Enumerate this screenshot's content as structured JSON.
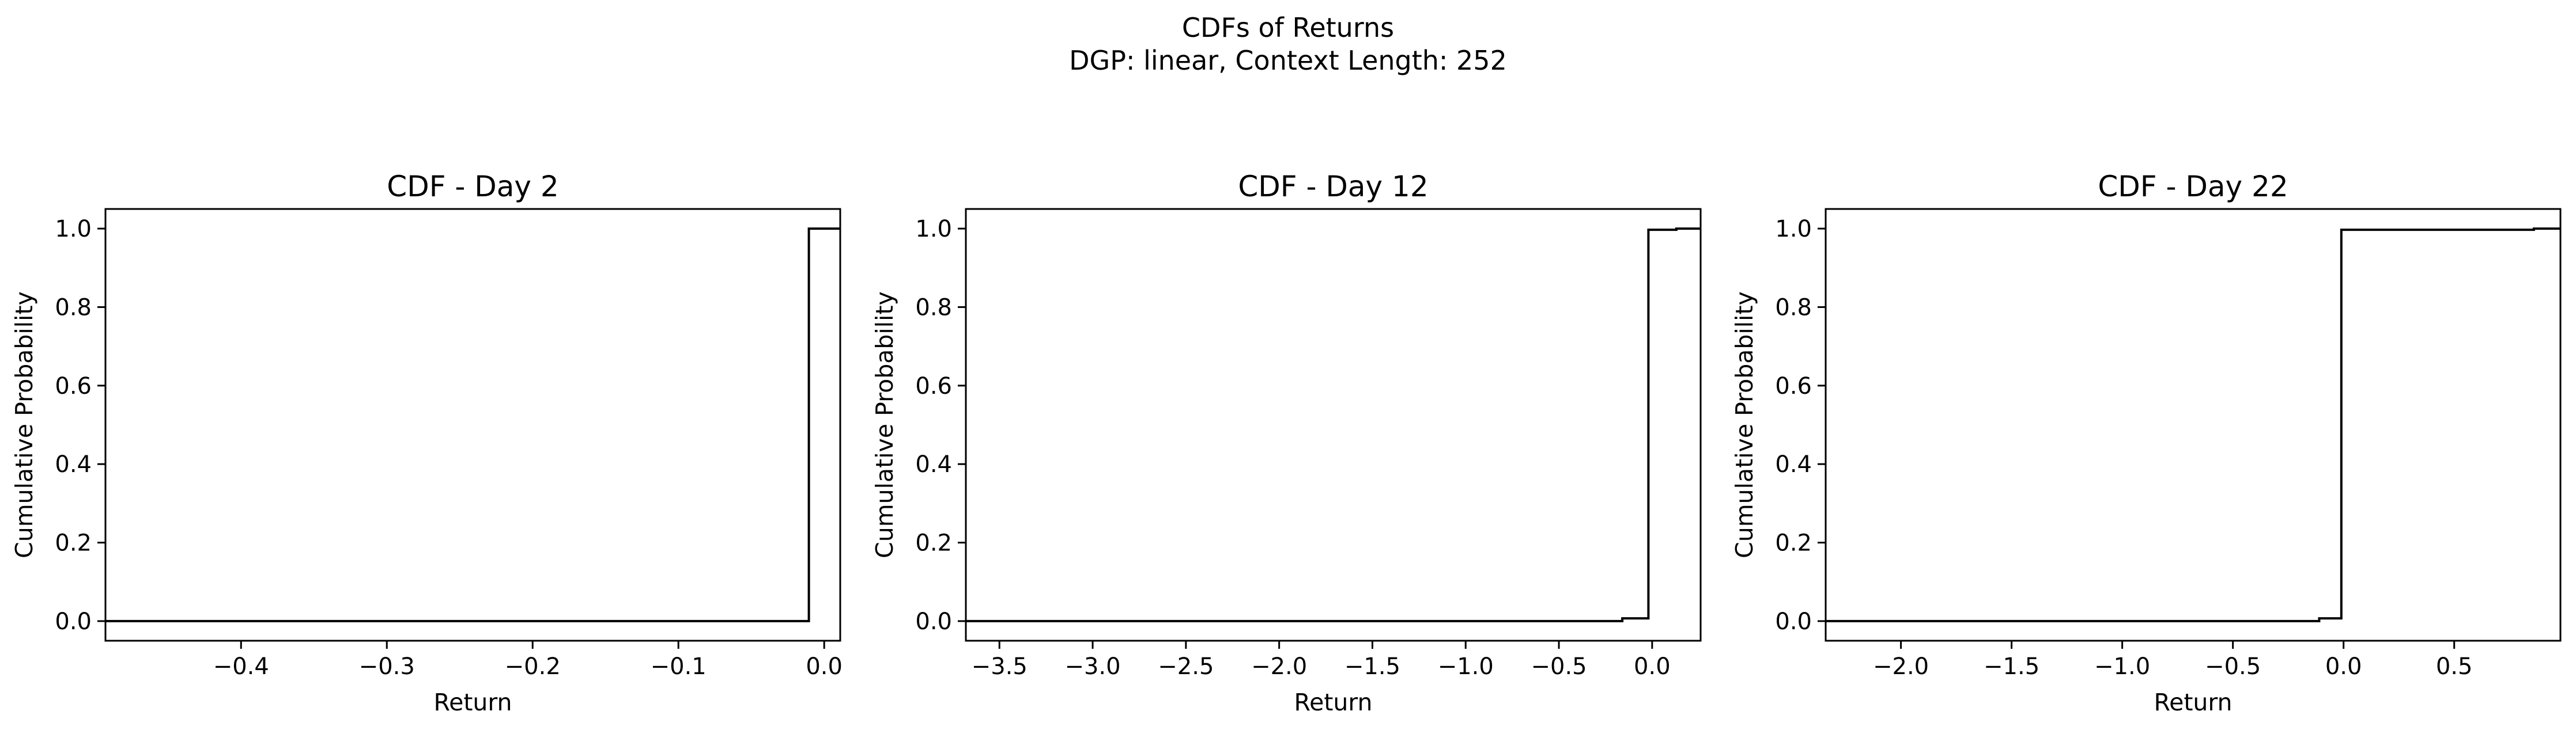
{
  "figure": {
    "title_line1": "CDFs of Returns",
    "title_line2": "DGP: linear, Context Length: 252"
  },
  "chart_data": [
    {
      "type": "line",
      "title": "CDF - Day 2",
      "xlabel": "Return",
      "ylabel": "Cumulative Probability",
      "xlim": [
        -0.493,
        0.011
      ],
      "ylim": [
        -0.05,
        1.05
      ],
      "xticks": [
        -0.4,
        -0.3,
        -0.2,
        -0.1,
        0.0
      ],
      "xticklabels": [
        "−0.4",
        "−0.3",
        "−0.2",
        "−0.1",
        "0.0"
      ],
      "yticks": [
        0.0,
        0.2,
        0.4,
        0.6,
        0.8,
        1.0
      ],
      "yticklabels": [
        "0.0",
        "0.2",
        "0.4",
        "0.6",
        "0.8",
        "1.0"
      ],
      "grid": false,
      "step": "post",
      "x": [
        -0.493,
        -0.0105,
        -0.0105,
        0.011
      ],
      "y": [
        0.0,
        0.0,
        1.0,
        1.0
      ]
    },
    {
      "type": "line",
      "title": "CDF - Day 12",
      "xlabel": "Return",
      "ylabel": "Cumulative Probability",
      "xlim": [
        -3.68,
        0.26
      ],
      "ylim": [
        -0.05,
        1.05
      ],
      "xticks": [
        -3.5,
        -3.0,
        -2.5,
        -2.0,
        -1.5,
        -1.0,
        -0.5,
        0.0
      ],
      "xticklabels": [
        "−3.5",
        "−3.0",
        "−2.5",
        "−2.0",
        "−1.5",
        "−1.0",
        "−0.5",
        "0.0"
      ],
      "yticks": [
        0.0,
        0.2,
        0.4,
        0.6,
        0.8,
        1.0
      ],
      "yticklabels": [
        "0.0",
        "0.2",
        "0.4",
        "0.6",
        "0.8",
        "1.0"
      ],
      "grid": false,
      "step": "post",
      "x": [
        -3.68,
        -0.16,
        -0.16,
        -0.02,
        -0.02,
        0.13,
        0.13,
        0.26
      ],
      "y": [
        0.0,
        0.0,
        0.007,
        0.007,
        0.997,
        0.997,
        1.0,
        1.0
      ]
    },
    {
      "type": "line",
      "title": "CDF - Day 22",
      "xlabel": "Return",
      "ylabel": "Cumulative Probability",
      "xlim": [
        -2.34,
        0.98
      ],
      "ylim": [
        -0.05,
        1.05
      ],
      "xticks": [
        -2.0,
        -1.5,
        -1.0,
        -0.5,
        0.0,
        0.5
      ],
      "xticklabels": [
        "−2.0",
        "−1.5",
        "−1.0",
        "−0.5",
        "0.0",
        "0.5"
      ],
      "yticks": [
        0.0,
        0.2,
        0.4,
        0.6,
        0.8,
        1.0
      ],
      "yticklabels": [
        "0.0",
        "0.2",
        "0.4",
        "0.6",
        "0.8",
        "1.0"
      ],
      "grid": false,
      "step": "post",
      "x": [
        -2.34,
        -0.11,
        -0.11,
        -0.01,
        -0.01,
        0.86,
        0.86,
        0.98
      ],
      "y": [
        0.0,
        0.0,
        0.007,
        0.007,
        0.997,
        0.997,
        1.0,
        1.0
      ]
    }
  ]
}
